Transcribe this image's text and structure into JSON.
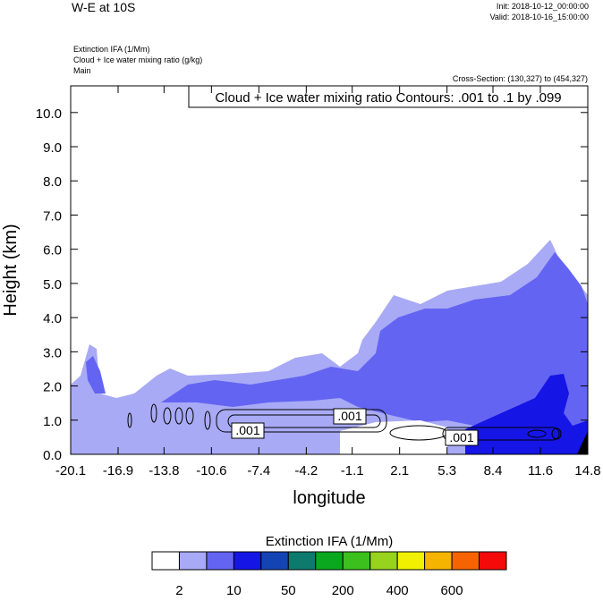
{
  "chart_data": {
    "type": "cross-section",
    "title": "W-E at 10S",
    "init": "Init: 2018-10-12_00:00:00",
    "valid": "Valid: 2018-10-16_15:00:00",
    "fields": [
      "Extinction IFA   (1/Mm)",
      "Cloud + Ice water mixing ratio   (g/kg)",
      "Main"
    ],
    "cross_section": "Cross-Section: (130,327) to (454,327)",
    "contour_info": "Cloud + Ice water mixing ratio Contours: .001 to .1 by .099",
    "contour_labels": [
      ".001",
      ".001",
      ".001"
    ],
    "x_label": "longitude",
    "y_label": "Height (km)",
    "xlim": [
      -20.1,
      14.8
    ],
    "xticks": [
      -20.1,
      -16.9,
      -13.8,
      -10.6,
      -7.4,
      -4.2,
      -1.1,
      2.1,
      5.3,
      8.4,
      11.6,
      14.8
    ],
    "ylim": [
      0,
      10.78
    ],
    "yticks": [
      {
        "value": 0,
        "label": "0.0"
      },
      {
        "value": 1,
        "label": "1.0"
      },
      {
        "value": 2,
        "label": "2.0"
      },
      {
        "value": 3,
        "label": "3.0"
      },
      {
        "value": 4,
        "label": "4.0"
      },
      {
        "value": 5,
        "label": "5.0"
      },
      {
        "value": 6,
        "label": "6.0"
      },
      {
        "value": 7,
        "label": "7.0"
      },
      {
        "value": 8,
        "label": "8.0"
      },
      {
        "value": 9,
        "label": "9.0"
      },
      {
        "value": 10,
        "label": "10.0"
      }
    ],
    "colorbar": {
      "title": "Extinction IFA  (1/Mm)",
      "colors": [
        "#ffffff",
        "#a8aaf5",
        "#6464f2",
        "#1515e6",
        "#1444b4",
        "#0e7a6e",
        "#0aa81e",
        "#3cc01e",
        "#96d21e",
        "#f0f000",
        "#f5b400",
        "#f56400",
        "#f50a0a"
      ],
      "labels": [
        "2",
        "10",
        "50",
        "200",
        "400",
        "600"
      ]
    }
  }
}
